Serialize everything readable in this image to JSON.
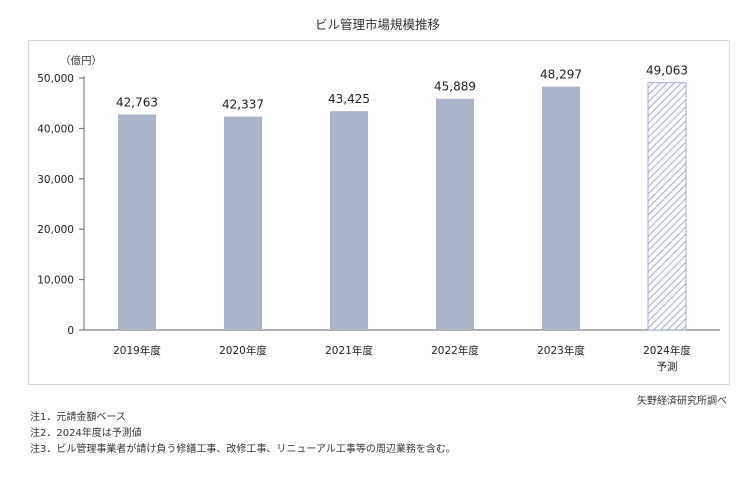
{
  "title": "ビル管理市場規模推移",
  "unit_label": "（億円）",
  "source": "矢野経済研究所調べ",
  "notes": [
    "注1．元請金額ベース",
    "注2．2024年度は予測値",
    "注3．ビル管理事業者が請け負う修繕工事、改修工事、リニューアル工事等の周辺業務を含む。"
  ],
  "colors": {
    "bar": "#aab3c5",
    "forecast_bar": "#8e99c9",
    "axis": "#666666"
  },
  "chart_data": {
    "type": "bar",
    "title": "ビル管理市場規模推移",
    "ylabel": "（億円）",
    "xlabel": "",
    "ylim": [
      0,
      50000
    ],
    "yticks": [
      0,
      10000,
      20000,
      30000,
      40000,
      50000
    ],
    "ytick_labels": [
      "0",
      "10,000",
      "20,000",
      "30,000",
      "40,000",
      "50,000"
    ],
    "grid": false,
    "categories": [
      "2019年度",
      "2020年度",
      "2021年度",
      "2022年度",
      "2023年度",
      "2024年度"
    ],
    "category_sublabels": [
      "",
      "",
      "",
      "",
      "",
      "予測"
    ],
    "values": [
      42763,
      42337,
      43425,
      45889,
      48297,
      49063
    ],
    "value_labels": [
      "42,763",
      "42,337",
      "43,425",
      "45,889",
      "48,297",
      "49,063"
    ],
    "forecast": [
      false,
      false,
      false,
      false,
      false,
      true
    ]
  }
}
